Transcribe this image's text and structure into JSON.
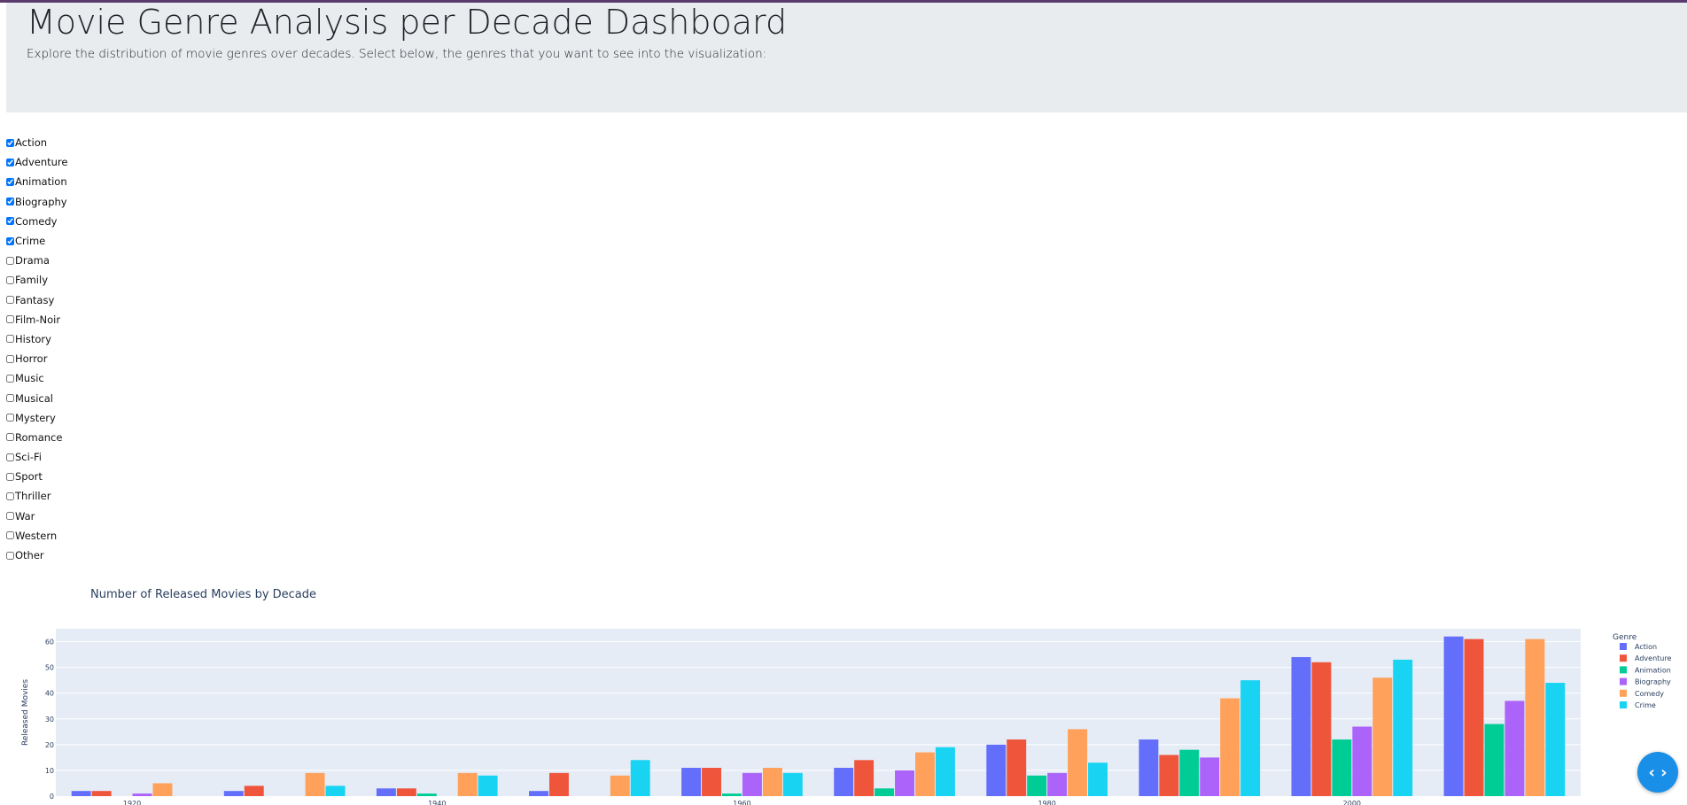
{
  "header": {
    "title": "Movie Genre Analysis per Decade Dashboard",
    "subtitle": "Explore the distribution of movie genres over decades. Select below, the genres that you want to see into the visualization:"
  },
  "genres": [
    {
      "label": "Action",
      "checked": true
    },
    {
      "label": "Adventure",
      "checked": true
    },
    {
      "label": "Animation",
      "checked": true
    },
    {
      "label": "Biography",
      "checked": true
    },
    {
      "label": "Comedy",
      "checked": true
    },
    {
      "label": "Crime",
      "checked": true
    },
    {
      "label": "Drama",
      "checked": false
    },
    {
      "label": "Family",
      "checked": false
    },
    {
      "label": "Fantasy",
      "checked": false
    },
    {
      "label": "Film-Noir",
      "checked": false
    },
    {
      "label": "History",
      "checked": false
    },
    {
      "label": "Horror",
      "checked": false
    },
    {
      "label": "Music",
      "checked": false
    },
    {
      "label": "Musical",
      "checked": false
    },
    {
      "label": "Mystery",
      "checked": false
    },
    {
      "label": "Romance",
      "checked": false
    },
    {
      "label": "Sci-Fi",
      "checked": false
    },
    {
      "label": "Sport",
      "checked": false
    },
    {
      "label": "Thriller",
      "checked": false
    },
    {
      "label": "War",
      "checked": false
    },
    {
      "label": "Western",
      "checked": false
    },
    {
      "label": "Other",
      "checked": false
    }
  ],
  "fab": {
    "icon": "code-brackets-icon",
    "glyph": "‹ ›"
  },
  "chart_data": {
    "type": "bar",
    "title": "Number of Released Movies by Decade",
    "xlabel": "",
    "ylabel": "Released Movies",
    "legend_title": "Genre",
    "legend_position": "right",
    "grid": true,
    "x": [
      1920,
      1930,
      1940,
      1950,
      1960,
      1970,
      1980,
      1990,
      2000,
      2010
    ],
    "xticks": [
      1920,
      1940,
      1960,
      1980,
      2000
    ],
    "xlim": [
      1915,
      2015
    ],
    "yticks": [
      0,
      10,
      20,
      30,
      40,
      50,
      60
    ],
    "ylim": [
      0,
      65
    ],
    "series": [
      {
        "name": "Action",
        "color": "#636efa",
        "values": [
          2,
          2,
          3,
          2,
          11,
          11,
          20,
          22,
          54,
          62
        ]
      },
      {
        "name": "Adventure",
        "color": "#ef553b",
        "values": [
          2,
          4,
          3,
          9,
          11,
          14,
          22,
          16,
          52,
          61
        ]
      },
      {
        "name": "Animation",
        "color": "#00cc96",
        "values": [
          0,
          0,
          1,
          0,
          1,
          3,
          8,
          18,
          22,
          28
        ]
      },
      {
        "name": "Biography",
        "color": "#ab63fa",
        "values": [
          1,
          0,
          0,
          0,
          9,
          10,
          9,
          15,
          27,
          37
        ]
      },
      {
        "name": "Comedy",
        "color": "#ffa15a",
        "values": [
          5,
          9,
          9,
          8,
          11,
          17,
          26,
          38,
          46,
          61
        ]
      },
      {
        "name": "Crime",
        "color": "#19d3f3",
        "values": [
          0,
          4,
          8,
          14,
          9,
          19,
          13,
          45,
          53,
          44
        ]
      }
    ]
  }
}
